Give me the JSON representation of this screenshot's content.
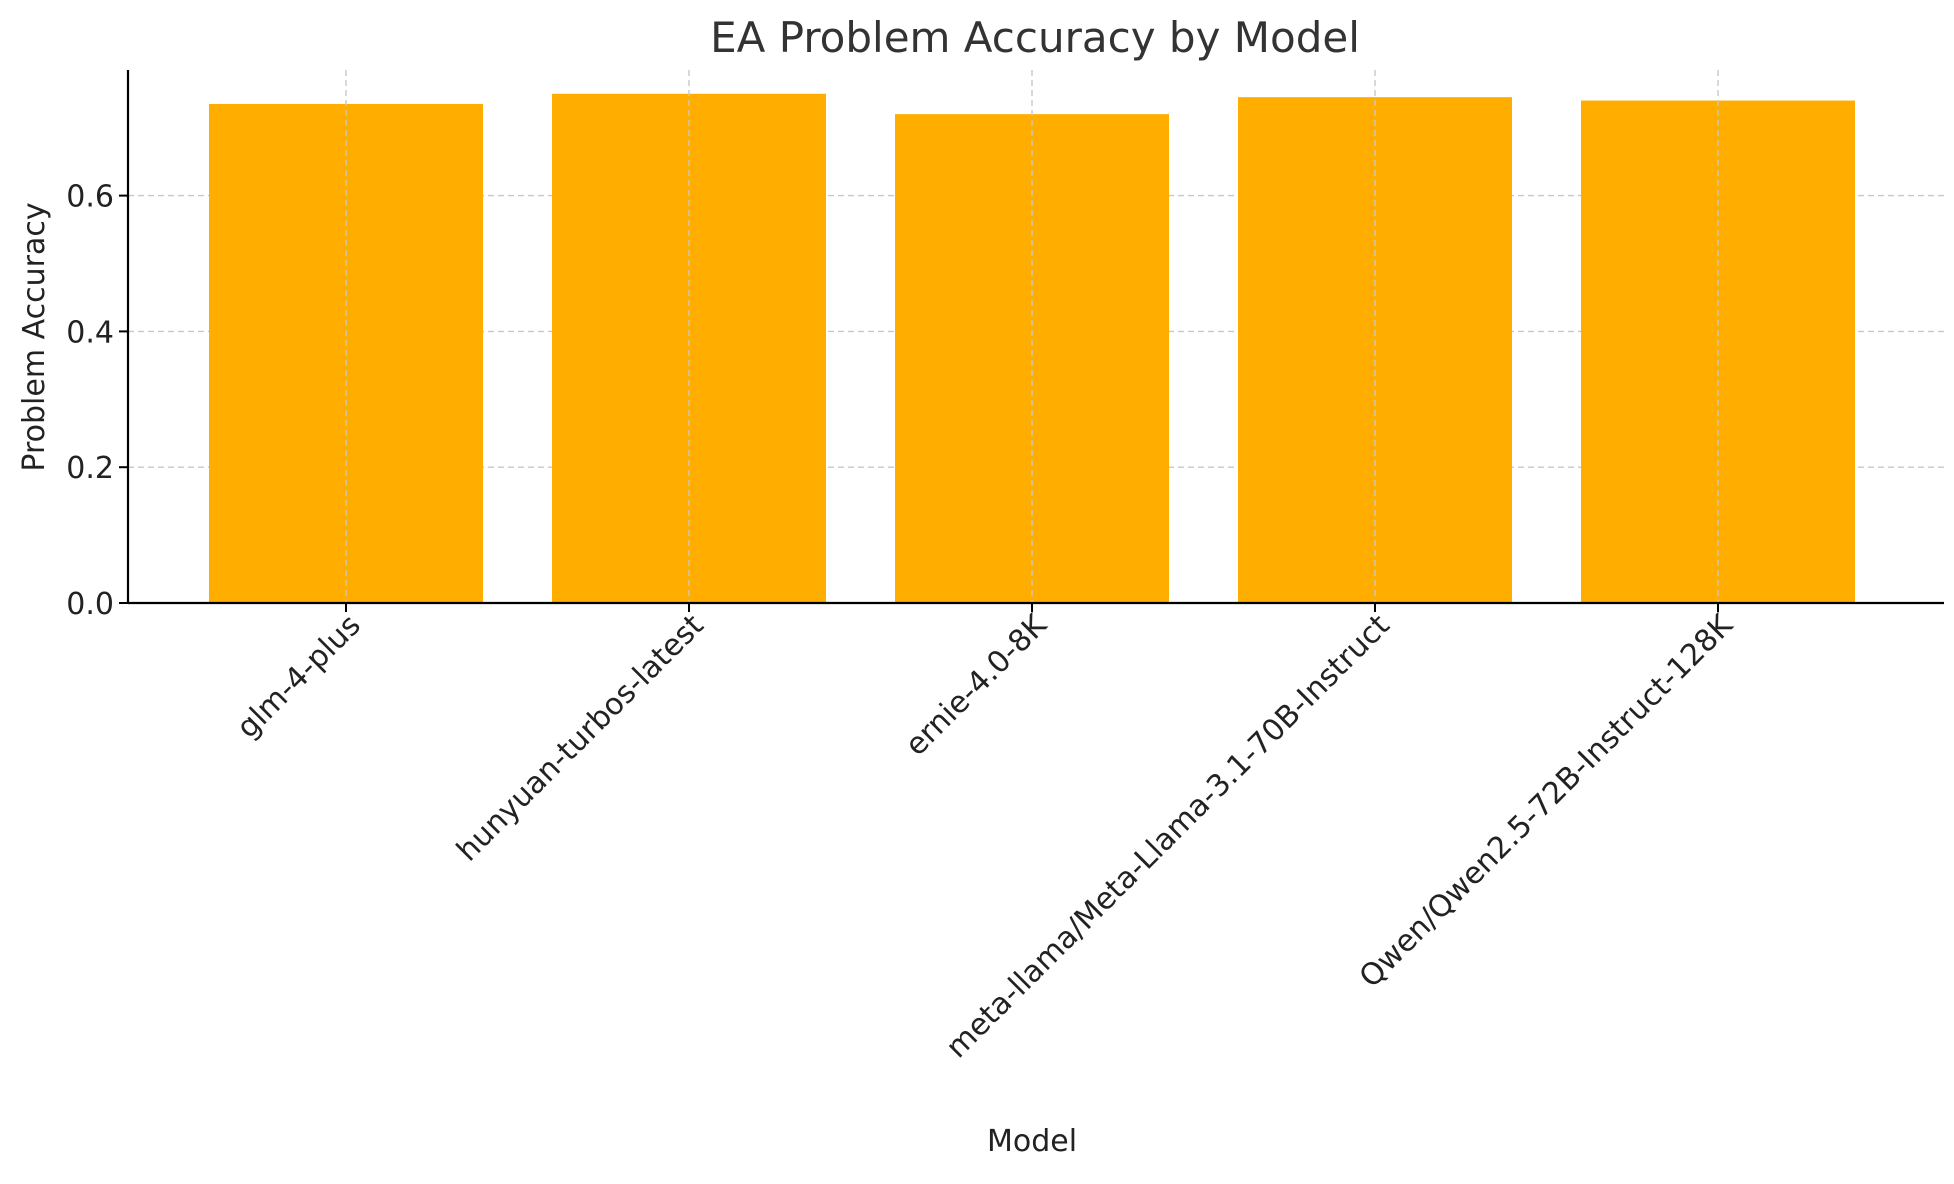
{
  "chart_data": {
    "type": "bar",
    "title": "EA Problem Accuracy by Model",
    "xlabel": "Model",
    "ylabel": "Problem Accuracy",
    "categories": [
      "glm-4-plus",
      "hunyuan-turbos-latest",
      "ernie-4.0-8K",
      "meta-llama/Meta-Llama-3.1-70B-Instruct",
      "Qwen/Qwen2.5-72B-Instruct-128K"
    ],
    "values": [
      0.735,
      0.75,
      0.72,
      0.745,
      0.74
    ],
    "ylim": [
      0,
      0.785
    ],
    "yticks": [
      0.0,
      0.2,
      0.4,
      0.6
    ],
    "ytick_labels": [
      "0.0",
      "0.2",
      "0.4",
      "0.6"
    ],
    "grid": true,
    "bar_color": "#FFAE00",
    "grid_color": "#c8c8c8",
    "axis_color": "#000000",
    "text_color": "#222222"
  }
}
